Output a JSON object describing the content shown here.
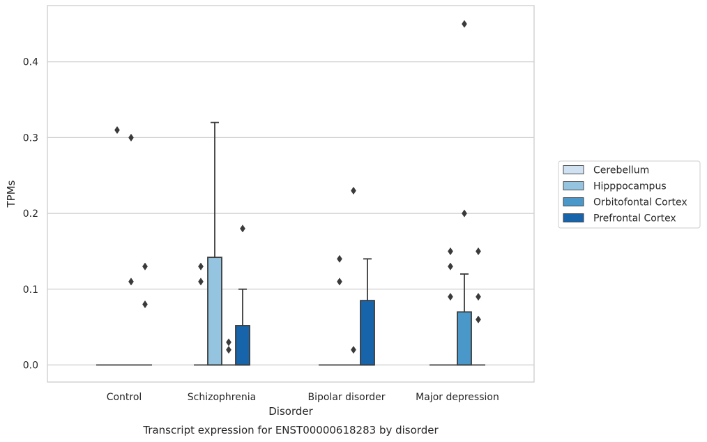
{
  "chart_data": {
    "type": "box",
    "title": "",
    "caption": "Transcript expression for ENST00000618283 by disorder",
    "xlabel": "Disorder",
    "ylabel": "TPMs",
    "ylim": [
      -0.022,
      0.475
    ],
    "yticks": [
      0.0,
      0.1,
      0.2,
      0.3,
      0.4
    ],
    "ytick_labels": [
      "0.0",
      "0.1",
      "0.2",
      "0.3",
      "0.4"
    ],
    "grid": "horizontal",
    "legend_position": "right",
    "categories": [
      "Control",
      "Schizophrenia",
      "Bipolar disorder",
      "Major depression"
    ],
    "series": [
      {
        "name": "Cerebellum",
        "color": "#d0e1f2",
        "boxes": [
          {
            "q1": 0,
            "median": 0,
            "q3": 0,
            "whislo": 0,
            "whishi": 0,
            "fliers": []
          },
          {
            "q1": 0,
            "median": 0,
            "q3": 0,
            "whislo": 0,
            "whishi": 0,
            "fliers": []
          },
          {
            "q1": 0,
            "median": 0,
            "q3": 0,
            "whislo": 0,
            "whishi": 0,
            "fliers": []
          },
          {
            "q1": 0,
            "median": 0,
            "q3": 0,
            "whislo": 0,
            "whishi": 0,
            "fliers": []
          }
        ]
      },
      {
        "name": "Hipppocampus",
        "color": "#94c4df",
        "boxes": [
          {
            "q1": 0,
            "median": 0,
            "q3": 0,
            "whislo": 0,
            "whishi": 0,
            "fliers": [
              0.31
            ]
          },
          {
            "q1": 0,
            "median": 0,
            "q3": 0.142,
            "whislo": 0,
            "whishi": 0.32,
            "fliers": []
          },
          {
            "q1": 0,
            "median": 0,
            "q3": 0,
            "whislo": 0,
            "whishi": 0,
            "fliers": [
              0.14,
              0.11
            ]
          },
          {
            "q1": 0,
            "median": 0,
            "q3": 0,
            "whislo": 0,
            "whishi": 0,
            "fliers": [
              0.09
            ]
          }
        ]
      },
      {
        "name": "Orbitofontal Cortex",
        "color": "#4a98c9",
        "boxes": [
          {
            "q1": 0,
            "median": 0,
            "q3": 0,
            "whislo": 0,
            "whishi": 0,
            "fliers": [
              0.3,
              0.11
            ]
          },
          {
            "q1": 0,
            "median": 0,
            "q3": 0,
            "whislo": 0,
            "whishi": 0,
            "fliers": [
              0.03,
              0.02
            ]
          },
          {
            "q1": 0,
            "median": 0,
            "q3": 0,
            "whislo": 0,
            "whishi": 0,
            "fliers": [
              0.23,
              0.02
            ]
          },
          {
            "q1": 0,
            "median": 0,
            "q3": 0.07,
            "whislo": 0,
            "whishi": 0.12,
            "fliers": [
              0.2
            ]
          }
        ]
      },
      {
        "name": "Prefrontal Cortex",
        "color": "#1764ab",
        "boxes": [
          {
            "q1": 0,
            "median": 0,
            "q3": 0,
            "whislo": 0,
            "whishi": 0,
            "fliers": [
              0.13,
              0.08
            ]
          },
          {
            "q1": 0,
            "median": 0,
            "q3": 0.052,
            "whislo": 0,
            "whishi": 0.1,
            "fliers": [
              0.18
            ]
          },
          {
            "q1": 0,
            "median": 0,
            "q3": 0.085,
            "whislo": 0,
            "whishi": 0.14,
            "fliers": []
          },
          {
            "q1": 0,
            "median": 0,
            "q3": 0,
            "whislo": 0,
            "whishi": 0,
            "fliers": [
              0.15,
              0.09,
              0.06
            ]
          }
        ]
      }
    ],
    "extra_fliers": [
      {
        "category": 3,
        "series": 1,
        "values": [
          0.15,
          0.13
        ]
      },
      {
        "category": 3,
        "series": 2,
        "values": [
          0.45
        ]
      },
      {
        "category": 1,
        "series": 0,
        "values": [
          0.13,
          0.11
        ]
      }
    ]
  }
}
